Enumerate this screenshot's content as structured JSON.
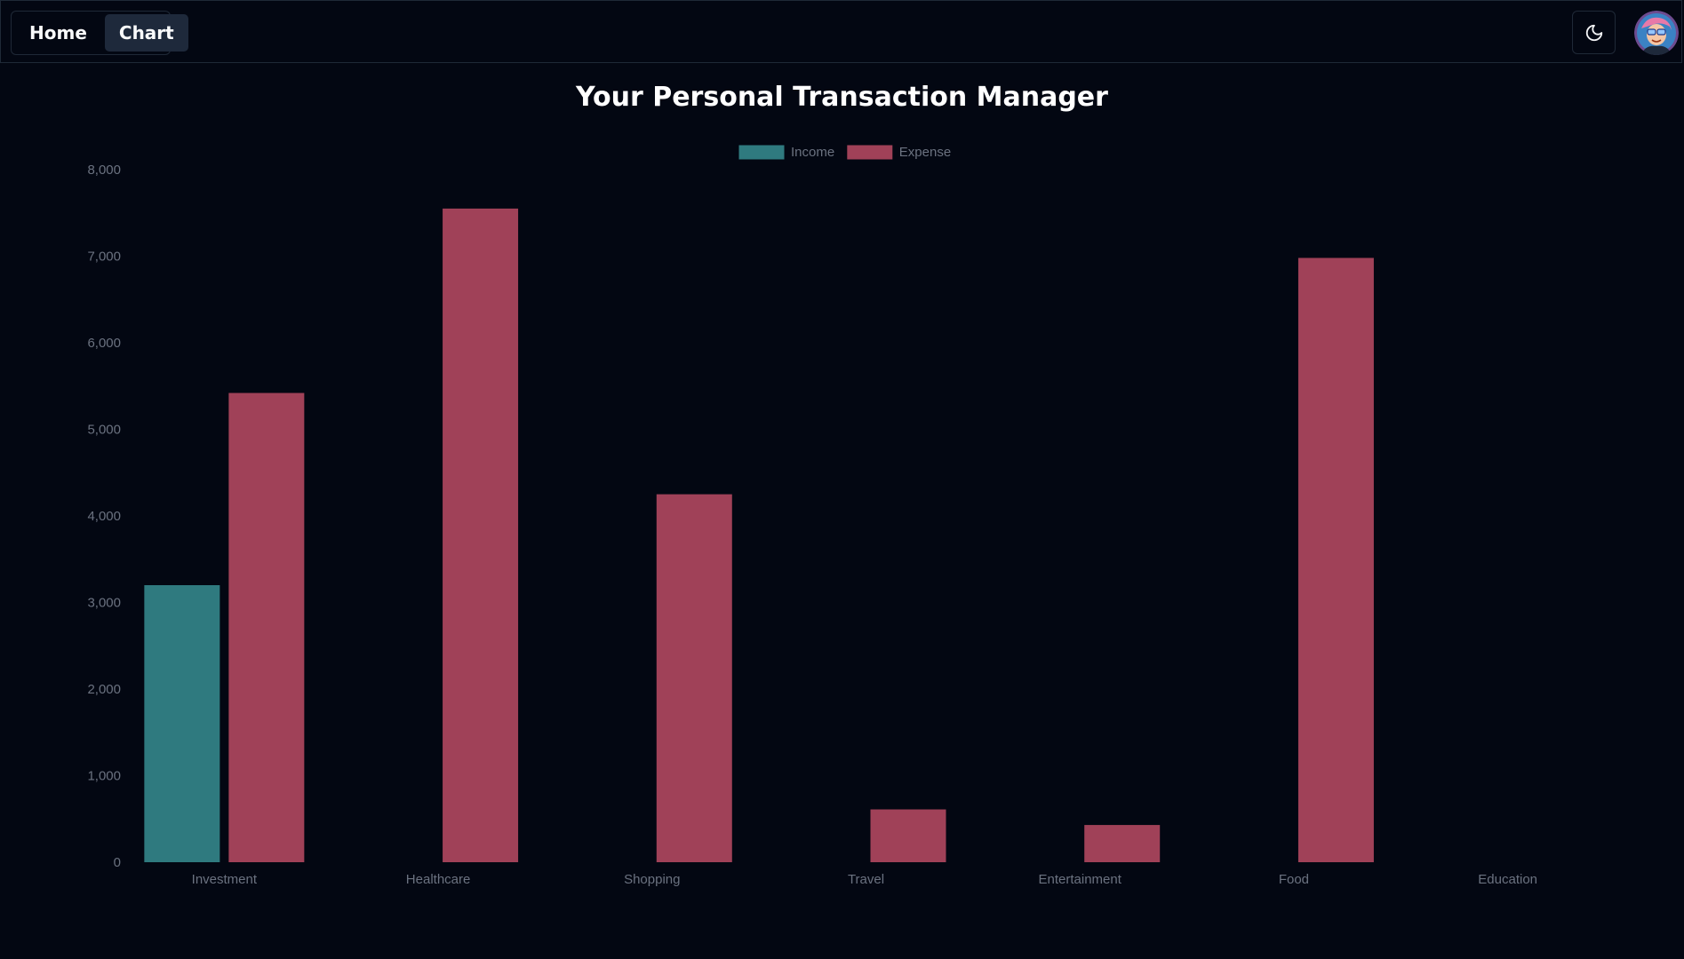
{
  "nav": {
    "tabs": [
      {
        "label": "Home",
        "active": false
      },
      {
        "label": "Chart",
        "active": true
      }
    ],
    "theme_toggle_icon": "moon-icon",
    "avatar_icon": "user-avatar"
  },
  "page": {
    "title": "Your Personal Transaction Manager"
  },
  "colors": {
    "background": "#030712",
    "income": "#2f7a7f",
    "expense": "#a04158",
    "axis_text": "#6b7280"
  },
  "chart_data": {
    "type": "bar",
    "title": "",
    "categories": [
      "Investment",
      "Healthcare",
      "Shopping",
      "Travel",
      "Entertainment",
      "Food",
      "Education"
    ],
    "series": [
      {
        "name": "Income",
        "color": "#2f7a7f",
        "values": [
          3200,
          0,
          0,
          0,
          0,
          0,
          0
        ]
      },
      {
        "name": "Expense",
        "color": "#a04158",
        "values": [
          5420,
          7550,
          4250,
          610,
          430,
          6980,
          0
        ]
      }
    ],
    "yticks": [
      "0",
      "1,000",
      "2,000",
      "3,000",
      "4,000",
      "5,000",
      "6,000",
      "7,000",
      "8,000"
    ],
    "ylim": [
      0,
      8000
    ],
    "grid": false,
    "legend_position": "top-center"
  }
}
